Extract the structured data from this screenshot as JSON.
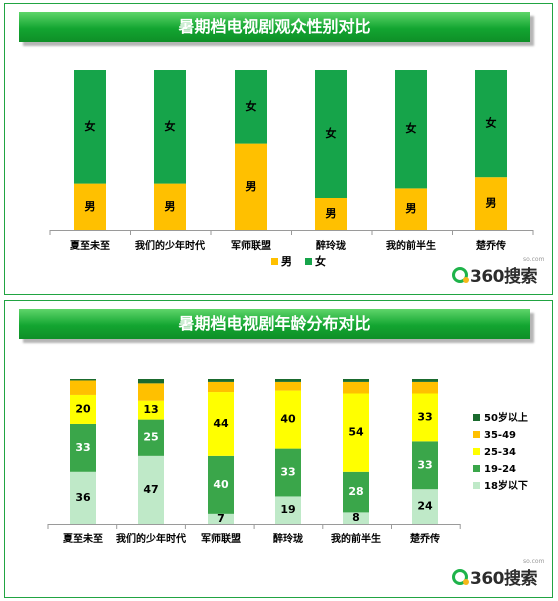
{
  "chart_data": [
    {
      "type": "bar",
      "title": "暑期档电视剧观众性别对比",
      "categories": [
        "夏至未至",
        "我们的少年时代",
        "军师联盟",
        "醉玲珑",
        "我的前半生",
        "楚乔传"
      ],
      "series": [
        {
          "name": "男",
          "values": [
            29,
            29,
            54,
            20,
            26,
            33
          ],
          "color": "#ffc000"
        },
        {
          "name": "女",
          "values": [
            71,
            71,
            46,
            80,
            74,
            67
          ],
          "color": "#16a44a"
        }
      ],
      "legend_position": "bottom",
      "ylim": [
        0,
        100
      ]
    },
    {
      "type": "bar",
      "title": "暑期档电视剧年龄分布对比",
      "categories": [
        "夏至未至",
        "我们的少年时代",
        "军师联盟",
        "醉玲珑",
        "我的前半生",
        "楚乔传"
      ],
      "series": [
        {
          "name": "18岁以下",
          "values": [
            36,
            47,
            7,
            19,
            8,
            24
          ],
          "color": "#bfe9c8"
        },
        {
          "name": "19-24",
          "values": [
            33,
            25,
            40,
            33,
            28,
            33
          ],
          "color": "#3aa64a"
        },
        {
          "name": "25-34",
          "values": [
            20,
            13,
            44,
            40,
            54,
            33
          ],
          "color": "#ffff00"
        },
        {
          "name": "35-49",
          "values": [
            10,
            12,
            7,
            6,
            8,
            8
          ],
          "color": "#ffc000"
        },
        {
          "name": "50岁以上",
          "values": [
            1,
            3,
            2,
            2,
            2,
            2
          ],
          "color": "#1a6a2e"
        }
      ],
      "labeled_series": [
        "18岁以下",
        "19-24",
        "25-34"
      ],
      "legend_position": "right",
      "ylim": [
        0,
        100
      ]
    }
  ],
  "logo": {
    "text": "360搜索",
    "sub": "so.com"
  }
}
